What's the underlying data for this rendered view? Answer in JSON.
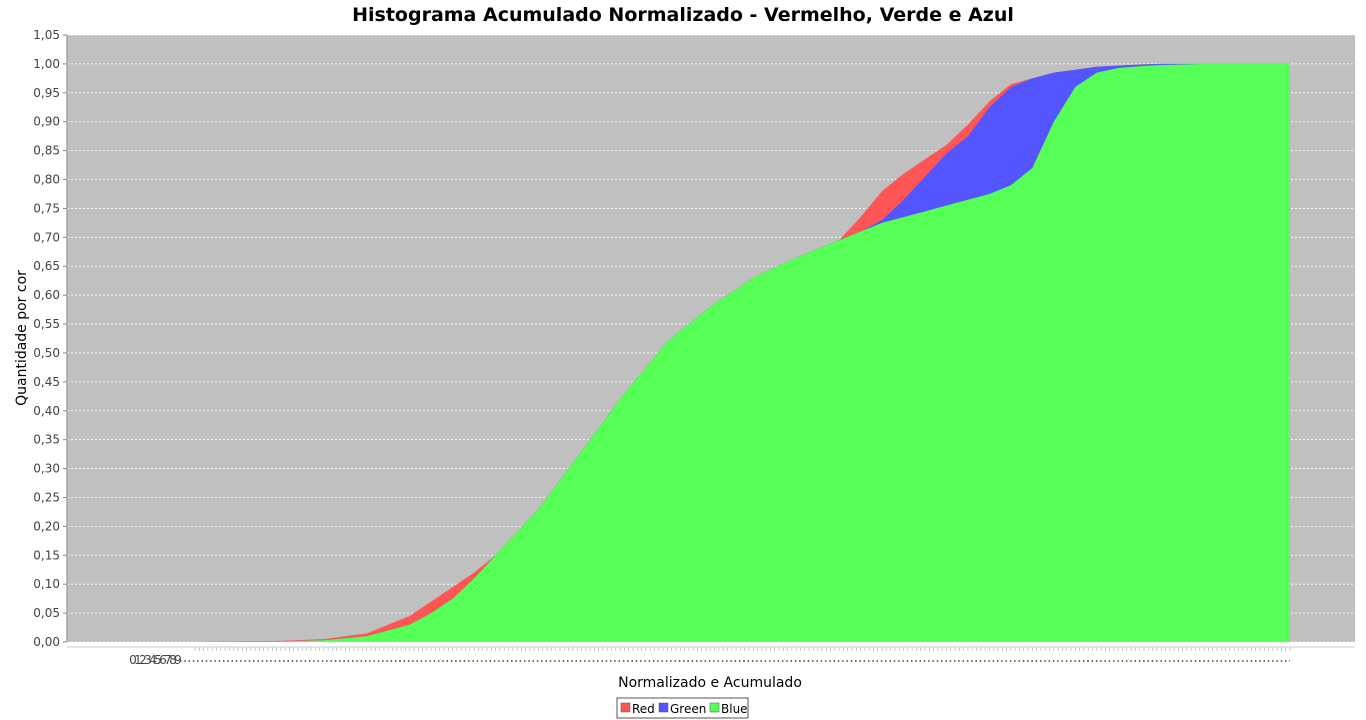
{
  "chart_data": {
    "type": "area",
    "title": "Histograma Acumulado Normalizado - Vermelho, Verde e Azul",
    "xlabel": "Normalizado e Acumulado",
    "ylabel": "Quantidade por cor",
    "xlim": [
      0,
      255
    ],
    "ylim": [
      0,
      1.05
    ],
    "y_ticks": [
      "0,00",
      "0,05",
      "0,10",
      "0,15",
      "0,20",
      "0,25",
      "0,30",
      "0,35",
      "0,40",
      "0,45",
      "0,50",
      "0,55",
      "0,60",
      "0,65",
      "0,70",
      "0,75",
      "0,80",
      "0,85",
      "0,90",
      "0,95",
      "1,00",
      "1,05"
    ],
    "x_tick_labels": [
      "0",
      "1",
      "2",
      "3",
      "4",
      "5",
      "6",
      "7",
      "8",
      "9"
    ],
    "grid": true,
    "background": "#c0c0c0",
    "legend_position": "bottom",
    "x": [
      0,
      20,
      30,
      40,
      50,
      55,
      60,
      65,
      70,
      75,
      80,
      85,
      90,
      95,
      100,
      110,
      120,
      130,
      140,
      150,
      155,
      160,
      165,
      170,
      175,
      180,
      185,
      190,
      195,
      200,
      205,
      210,
      215,
      220,
      225,
      230,
      235,
      240,
      245,
      250,
      255
    ],
    "series": [
      {
        "name": "Red",
        "color": "#ff5555",
        "values": [
          0,
          0.002,
          0.005,
          0.015,
          0.045,
          0.07,
          0.095,
          0.12,
          0.15,
          0.19,
          0.23,
          0.28,
          0.33,
          0.38,
          0.43,
          0.52,
          0.58,
          0.63,
          0.665,
          0.695,
          0.735,
          0.78,
          0.81,
          0.835,
          0.86,
          0.895,
          0.935,
          0.965,
          0.975,
          0.985,
          0.99,
          0.995,
          0.997,
          0.999,
          1.0,
          1.0,
          1.0,
          1.0,
          1.0,
          1.0,
          1.0
        ]
      },
      {
        "name": "Green",
        "color": "#5555ff",
        "values": [
          0,
          0.001,
          0.003,
          0.01,
          0.03,
          0.05,
          0.075,
          0.11,
          0.15,
          0.19,
          0.23,
          0.28,
          0.33,
          0.38,
          0.43,
          0.52,
          0.58,
          0.63,
          0.665,
          0.695,
          0.71,
          0.73,
          0.765,
          0.805,
          0.845,
          0.875,
          0.925,
          0.96,
          0.975,
          0.985,
          0.99,
          0.995,
          0.997,
          0.999,
          1.0,
          1.0,
          1.0,
          1.0,
          1.0,
          1.0,
          1.0
        ]
      },
      {
        "name": "Blue",
        "color": "#55ff55",
        "values": [
          0,
          0.001,
          0.003,
          0.01,
          0.03,
          0.05,
          0.075,
          0.11,
          0.15,
          0.19,
          0.23,
          0.28,
          0.33,
          0.38,
          0.43,
          0.52,
          0.58,
          0.63,
          0.665,
          0.695,
          0.71,
          0.725,
          0.735,
          0.745,
          0.755,
          0.765,
          0.775,
          0.79,
          0.82,
          0.9,
          0.96,
          0.985,
          0.993,
          0.996,
          0.998,
          0.999,
          1.0,
          1.0,
          1.0,
          1.0,
          1.0
        ]
      }
    ]
  }
}
